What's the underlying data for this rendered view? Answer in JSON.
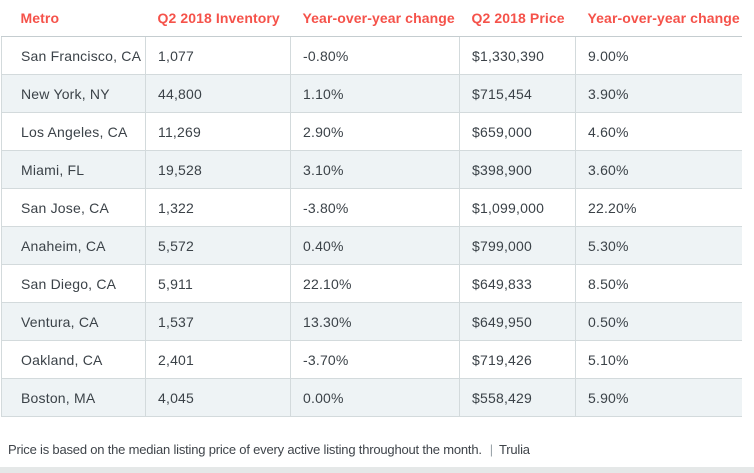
{
  "chart_data": {
    "type": "table",
    "title": "",
    "columns": [
      "Metro",
      "Q2 2018 Inventory",
      "Year-over-year change",
      "Q2 2018 Price",
      "Year-over-year change"
    ],
    "column_keys": [
      "metro",
      "inventory",
      "inventory-yoy-change",
      "price",
      "price-yoy-change"
    ],
    "rows": [
      [
        "San Francisco, CA",
        "1,077",
        "-0.80%",
        "$1,330,390",
        "9.00%"
      ],
      [
        "New York, NY",
        "44,800",
        "1.10%",
        "$715,454",
        "3.90%"
      ],
      [
        "Los Angeles, CA",
        "11,269",
        "2.90%",
        "$659,000",
        "4.60%"
      ],
      [
        "Miami, FL",
        "19,528",
        "3.10%",
        "$398,900",
        "3.60%"
      ],
      [
        "San Jose, CA",
        "1,322",
        "-3.80%",
        "$1,099,000",
        "22.20%"
      ],
      [
        "Anaheim, CA",
        "5,572",
        "0.40%",
        "$799,000",
        "5.30%"
      ],
      [
        "San Diego, CA",
        "5,911",
        "22.10%",
        "$649,833",
        "8.50%"
      ],
      [
        "Ventura, CA",
        "1,537",
        "13.30%",
        "$649,950",
        "0.50%"
      ],
      [
        "Oakland, CA",
        "2,401",
        "-3.70%",
        "$719,426",
        "5.10%"
      ],
      [
        "Boston, MA",
        "4,045",
        "0.00%",
        "$558,429",
        "5.90%"
      ]
    ],
    "layout_hints": {
      "header_text_color": "#f5524a",
      "alt_row_color": "#eef3f5",
      "border_color": "#d3dadc",
      "grid": "on"
    }
  },
  "footer": {
    "note": "Price is based on the median listing price of every active listing throughout the month.",
    "separator": "|",
    "source": "Trulia"
  }
}
